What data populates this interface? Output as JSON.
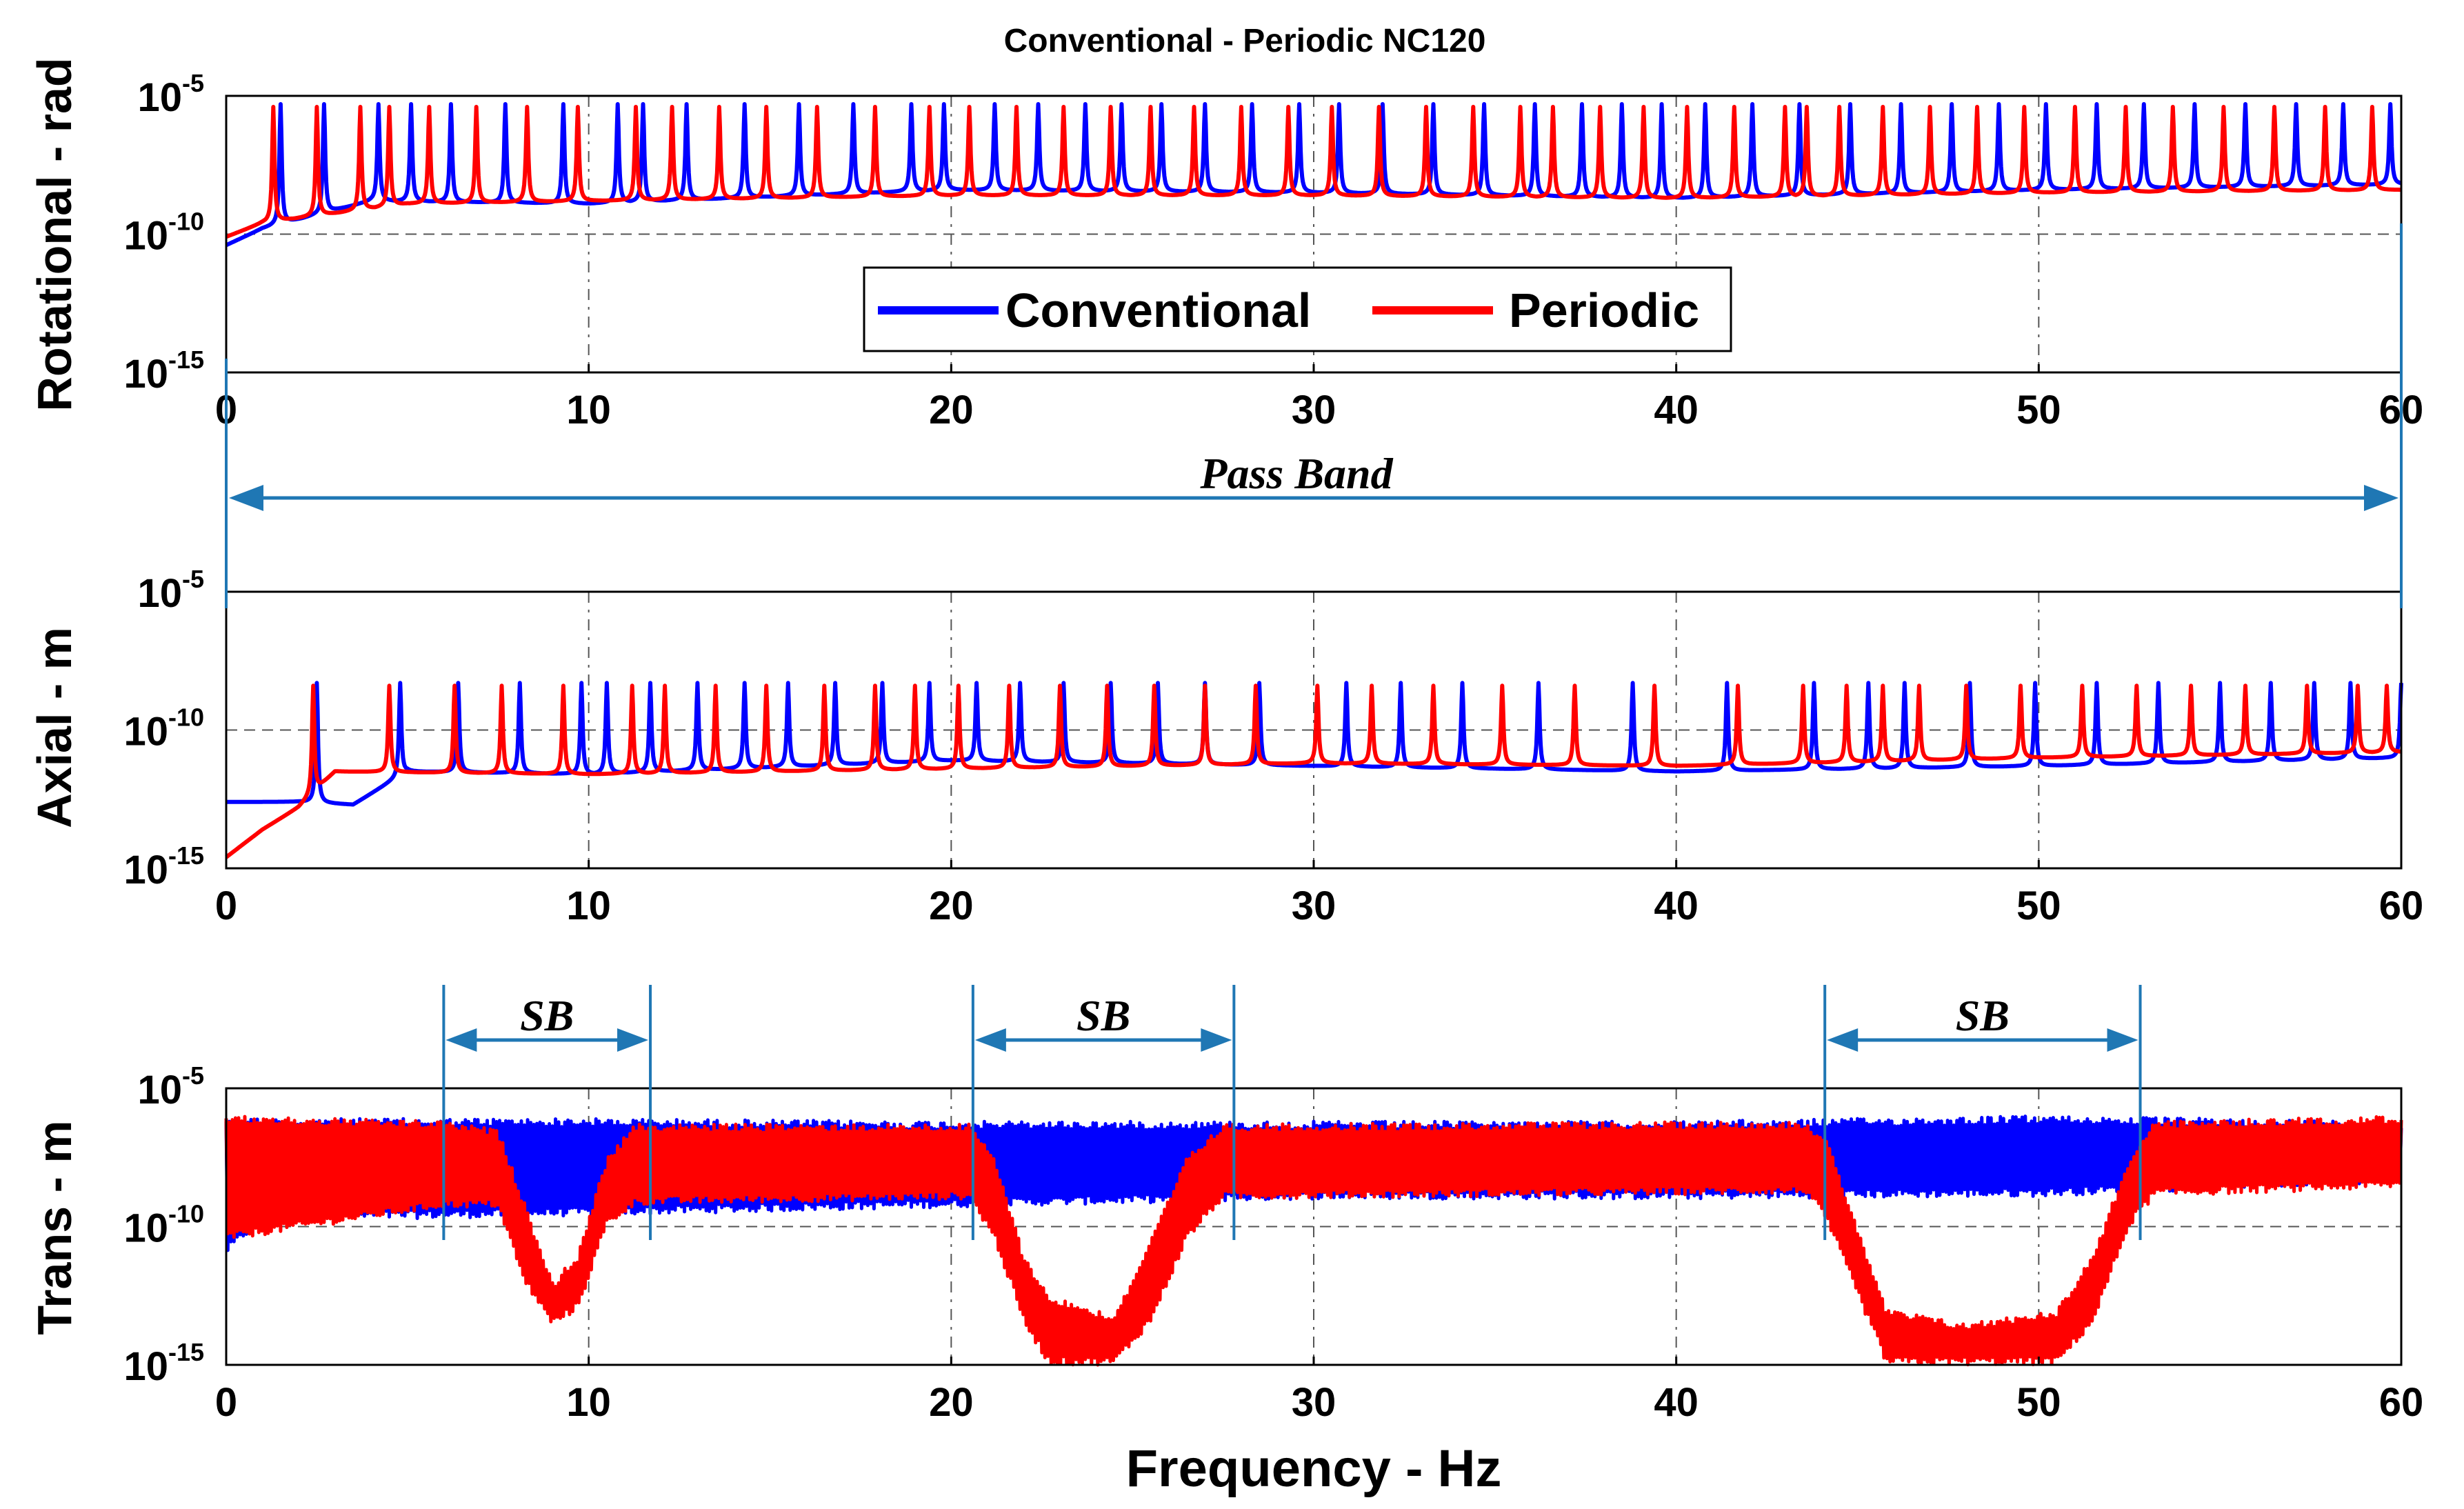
{
  "chart_data": {
    "type": "line",
    "title": "Conventional - Periodic NC120",
    "xlabel": "Frequency - Hz",
    "xlim": [
      0,
      60
    ],
    "xticks": [
      "0",
      "10",
      "20",
      "30",
      "40",
      "50",
      "60"
    ],
    "legend": {
      "placement": "inside-upper-center-of-top-panel",
      "entries": [
        {
          "name": "Conventional",
          "color": "#0000ff"
        },
        {
          "name": "Periodic",
          "color": "#ff0000"
        }
      ]
    },
    "subplots": [
      {
        "id": "rotational",
        "ylabel": "Rotational - rad",
        "yscale": "log",
        "ylim_exp": [
          -15,
          -5
        ],
        "yticks": [
          {
            "base": "10",
            "exp": "-5"
          },
          {
            "base": "10",
            "exp": "-10"
          },
          {
            "base": "10",
            "exp": "-15"
          }
        ],
        "grid": true,
        "series": [
          {
            "name": "Conventional",
            "color": "#0000ff",
            "baseline": [
              [
                0,
                -10.4
              ],
              [
                1,
                -9.8
              ],
              [
                4,
                -8.8
              ],
              [
                10,
                -8.9
              ],
              [
                20,
                -8.4
              ],
              [
                30,
                -8.5
              ],
              [
                40,
                -8.7
              ],
              [
                50,
                -8.4
              ],
              [
                60,
                -8.2
              ]
            ],
            "peaks": [
              1.5,
              2.7,
              4.2,
              5.1,
              6.2,
              7.7,
              9.3,
              10.8,
              11.5,
              12.7,
              14.3,
              15.8,
              17.3,
              18.9,
              19.8,
              21.2,
              22.4,
              23.7,
              24.7,
              25.8,
              27.0,
              28.3,
              29.6,
              30.7,
              31.9,
              33.3,
              34.7,
              36.1,
              37.4,
              38.5,
              39.6,
              40.8,
              42.1,
              43.4,
              44.8,
              46.2,
              47.6,
              48.9,
              50.2,
              51.6,
              52.9,
              54.3,
              55.7,
              57.1,
              58.4,
              59.7
            ],
            "peak_level": -5.3
          },
          {
            "name": "Periodic",
            "color": "#ff0000",
            "baseline": [
              [
                0,
                -10.1
              ],
              [
                1,
                -9.6
              ],
              [
                5,
                -8.9
              ],
              [
                10,
                -8.8
              ],
              [
                20,
                -8.6
              ],
              [
                30,
                -8.6
              ],
              [
                40,
                -8.7
              ],
              [
                50,
                -8.5
              ],
              [
                60,
                -8.4
              ]
            ],
            "peaks": [
              1.3,
              2.5,
              3.7,
              4.5,
              5.6,
              6.9,
              8.3,
              9.7,
              11.3,
              12.3,
              13.6,
              14.9,
              16.3,
              17.9,
              19.4,
              20.5,
              21.8,
              23.1,
              24.4,
              25.5,
              26.7,
              28.0,
              29.3,
              30.5,
              31.8,
              33.1,
              34.4,
              35.7,
              36.6,
              37.9,
              39.1,
              40.3,
              41.6,
              43.0,
              43.6,
              44.5,
              45.7,
              47.0,
              48.3,
              49.6,
              51.0,
              52.4,
              53.7,
              55.1,
              56.5,
              57.9,
              59.2
            ],
            "peak_level": -5.4
          }
        ]
      },
      {
        "id": "axial",
        "ylabel": "Axial - m",
        "yscale": "log",
        "ylim_exp": [
          -15,
          -5
        ],
        "yticks": [
          {
            "base": "10",
            "exp": "-5"
          },
          {
            "base": "10",
            "exp": "-10"
          },
          {
            "base": "10",
            "exp": "-15"
          }
        ],
        "grid": true,
        "series": [
          {
            "name": "Conventional",
            "color": "#0000ff",
            "baseline": [
              [
                0,
                -12.6
              ],
              [
                2,
                -12.6
              ],
              [
                3.5,
                -12.7
              ],
              [
                5,
                -11.5
              ],
              [
                10,
                -11.6
              ],
              [
                20,
                -11.1
              ],
              [
                30,
                -11.3
              ],
              [
                40,
                -11.5
              ],
              [
                50,
                -11.3
              ],
              [
                60,
                -11.0
              ]
            ],
            "peaks": [
              2.5,
              4.8,
              6.4,
              8.1,
              9.8,
              10.5,
              11.7,
              13.0,
              14.3,
              15.5,
              16.8,
              18.1,
              19.4,
              20.7,
              21.9,
              23.1,
              24.4,
              25.7,
              27.0,
              28.5,
              30.9,
              32.4,
              34.1,
              36.2,
              38.8,
              41.4,
              43.8,
              45.3,
              46.3,
              48.1,
              49.9,
              51.6,
              53.3,
              55.0,
              56.4,
              57.6,
              58.6,
              60.0
            ],
            "peak_level": -8.3
          },
          {
            "name": "Periodic",
            "color": "#ff0000",
            "baseline": [
              [
                0,
                -14.6
              ],
              [
                1,
                -13.6
              ],
              [
                2,
                -12.8
              ],
              [
                3,
                -11.5
              ],
              [
                10,
                -11.6
              ],
              [
                20,
                -11.4
              ],
              [
                30,
                -11.2
              ],
              [
                40,
                -11.3
              ],
              [
                50,
                -11.0
              ],
              [
                60,
                -10.8
              ]
            ],
            "peaks": [
              2.4,
              4.5,
              6.3,
              7.6,
              9.3,
              11.2,
              12.1,
              13.5,
              14.9,
              16.5,
              17.9,
              19.0,
              20.2,
              21.6,
              23.0,
              24.3,
              25.6,
              27.0,
              28.4,
              30.1,
              31.6,
              33.3,
              35.2,
              37.2,
              39.4,
              41.7,
              43.5,
              44.7,
              45.7,
              46.7,
              48.0,
              49.5,
              51.2,
              52.7,
              54.2,
              55.7,
              57.4,
              58.8,
              59.6
            ],
            "peak_level": -8.4
          }
        ]
      },
      {
        "id": "trans",
        "ylabel": "Trans - m",
        "yscale": "log",
        "ylim_exp": [
          -15,
          -5
        ],
        "yticks": [
          {
            "base": "10",
            "exp": "-5"
          },
          {
            "base": "10",
            "exp": "-10"
          },
          {
            "base": "10",
            "exp": "-15"
          }
        ],
        "grid": true,
        "series": [
          {
            "name": "Conventional",
            "color": "#0000ff",
            "envelope": [
              [
                0,
                -11.0,
                -6.0
              ],
              [
                1,
                -9.8,
                -6.1
              ],
              [
                10,
                -9.6,
                -6.1
              ],
              [
                20,
                -9.3,
                -6.2
              ],
              [
                30,
                -9.0,
                -6.2
              ],
              [
                40,
                -9.0,
                -6.2
              ],
              [
                50,
                -8.9,
                -6.0
              ],
              [
                60,
                -8.4,
                -6.2
              ]
            ]
          },
          {
            "name": "Periodic",
            "color": "#ff0000",
            "envelope": [
              [
                0,
                -10.5,
                -6.0
              ],
              [
                6,
                -9.3,
                -6.2
              ],
              [
                7.5,
                -9.3,
                -6.5
              ],
              [
                8.2,
                -12.0,
                -9.0
              ],
              [
                9.0,
                -13.6,
                -12.0
              ],
              [
                9.7,
                -13.0,
                -11.0
              ],
              [
                10.5,
                -10.0,
                -7.5
              ],
              [
                11.3,
                -9.2,
                -6.3
              ],
              [
                20.5,
                -9.0,
                -6.3
              ],
              [
                21.2,
                -10.5,
                -7.5
              ],
              [
                22.0,
                -13.5,
                -11.0
              ],
              [
                22.7,
                -15.0,
                -12.5
              ],
              [
                24.5,
                -15.0,
                -13.2
              ],
              [
                25.5,
                -13.5,
                -10.5
              ],
              [
                26.5,
                -10.5,
                -7.5
              ],
              [
                27.5,
                -9.0,
                -6.3
              ],
              [
                43.6,
                -8.8,
                -6.2
              ],
              [
                44.2,
                -10.0,
                -7.0
              ],
              [
                45.0,
                -12.5,
                -10.0
              ],
              [
                45.8,
                -15.0,
                -13.0
              ],
              [
                48.0,
                -15.0,
                -13.5
              ],
              [
                50.5,
                -15.0,
                -13.0
              ],
              [
                51.5,
                -13.5,
                -11.0
              ],
              [
                52.5,
                -10.0,
                -7.5
              ],
              [
                53.2,
                -8.9,
                -6.2
              ],
              [
                60,
                -8.6,
                -6.0
              ]
            ]
          }
        ]
      }
    ],
    "annotations": [
      {
        "text": "Pass Band",
        "subplot": "rotational-axial",
        "x_start": 0,
        "x_end": 60
      },
      {
        "text": "SB",
        "subplot": "trans",
        "x_start": 6.0,
        "x_end": 11.7
      },
      {
        "text": "SB",
        "subplot": "trans",
        "x_start": 20.6,
        "x_end": 27.8
      },
      {
        "text": "SB",
        "subplot": "trans",
        "x_start": 44.1,
        "x_end": 52.8
      }
    ]
  }
}
